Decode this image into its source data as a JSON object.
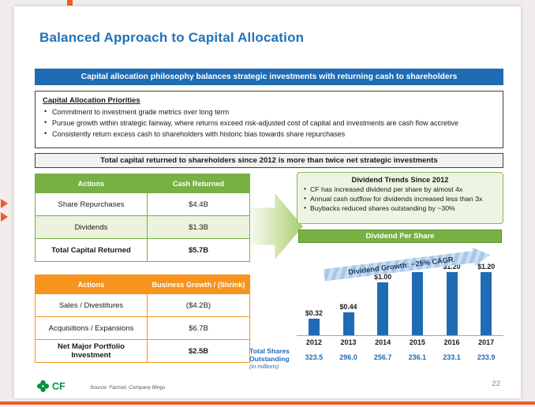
{
  "slide": {
    "title": "Balanced Approach to Capital Allocation",
    "philosophy_banner": "Capital allocation philosophy balances strategic investments with returning cash to shareholders",
    "priorities": {
      "heading": "Capital Allocation Priorities",
      "bullets": [
        "Commitment to investment grade metrics over long term",
        "Pursue growth within strategic fairway, where returns exceed risk-adjusted cost of capital and investments are cash flow accretive",
        "Consistently return excess cash to shareholders with historic bias towards share repurchases"
      ]
    },
    "highlight": "Total capital returned to shareholders since 2012 is more than twice net strategic investments",
    "cash_table": {
      "headers": [
        "Actions",
        "Cash Returned"
      ],
      "rows": [
        [
          "Share Repurchases",
          "$4.4B"
        ],
        [
          "Dividends",
          "$1.3B"
        ],
        [
          "Total Capital Returned",
          "$5.7B"
        ]
      ]
    },
    "growth_table": {
      "headers": [
        "Actions",
        "Business Growth / (Shrink)"
      ],
      "rows": [
        [
          "Sales / Divestitures",
          "($4.2B)"
        ],
        [
          "Acquisitions / Expansions",
          "$6.7B"
        ],
        [
          "Net Major Portfolio Investment",
          "$2.5B"
        ]
      ]
    },
    "dividend_box": {
      "title": "Dividend Trends Since 2012",
      "bullets": [
        "CF has increased dividend per share by almost 4x",
        "Annual cash outflow for dividends increased less than 3x",
        "Buybacks reduced shares outstanding by ~30%"
      ]
    },
    "chart_banner": "Dividend Per Share",
    "footer": {
      "logo_text": "CF",
      "source": "Source: Factset, Company filings",
      "page_number": "22"
    }
  },
  "chart_data": {
    "type": "bar",
    "title": "Dividend Per Share",
    "categories": [
      "2012",
      "2013",
      "2014",
      "2015",
      "2016",
      "2017"
    ],
    "values": [
      0.32,
      0.44,
      1.0,
      1.2,
      1.2,
      1.2
    ],
    "bar_labels": [
      "$0.32",
      "$0.44",
      "$1.00",
      "$1.20",
      "$1.20",
      "$1.20"
    ],
    "annotation": "Dividend Growth: ~25% CAGR",
    "ylim": [
      0,
      1.3
    ],
    "grid": "off",
    "legend": "off",
    "bar_color": "#1f6cb5",
    "secondary_series": {
      "name": "Total Shares Outstanding (in millions)",
      "label_lines": [
        "Total Shares",
        "Outstanding",
        "(in millions)"
      ],
      "values": [
        323.5,
        296.0,
        256.7,
        236.1,
        233.1,
        233.9
      ],
      "display": [
        "323.5",
        "296.0",
        "256.7",
        "236.1",
        "233.1",
        "233.9"
      ]
    }
  }
}
